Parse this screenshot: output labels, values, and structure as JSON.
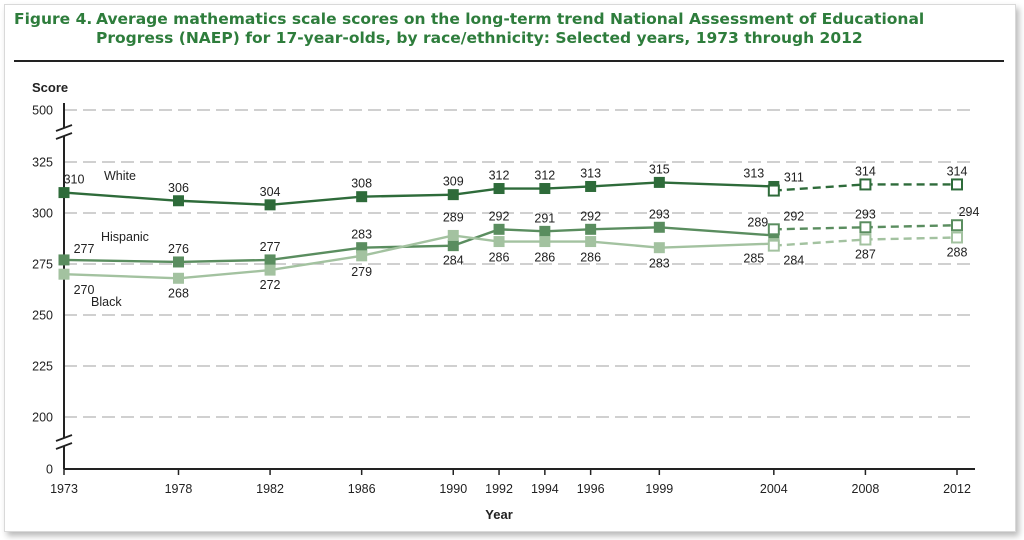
{
  "figure": {
    "number": "Figure 4.",
    "title": "Average mathematics scale scores on the long-term trend National Assessment of Educational Progress (NAEP) for 17-year-olds, by race/ethnicity: Selected years, 1973 through 2012"
  },
  "chart_data": {
    "type": "line",
    "xlabel": "Year",
    "ylabel": "Score",
    "x": [
      1973,
      1978,
      1982,
      1986,
      1990,
      1992,
      1994,
      1996,
      1999,
      2004,
      2008,
      2012
    ],
    "y_ticks": [
      "0",
      "200",
      "225",
      "250",
      "275",
      "300",
      "325",
      "500"
    ],
    "y_tick_values": [
      0,
      200,
      225,
      250,
      275,
      300,
      325,
      500
    ],
    "axis_breaks": [
      [
        0,
        200
      ],
      [
        325,
        500
      ]
    ],
    "assessment_change_after": 2004,
    "colors": {
      "White": "#2e6b3a",
      "Hispanic": "#5a8d5f",
      "Black": "#a3c2a0"
    },
    "series": [
      {
        "name": "White",
        "values_original": [
          310,
          306,
          304,
          308,
          309,
          312,
          312,
          313,
          315,
          313
        ],
        "x_original": [
          1973,
          1978,
          1982,
          1986,
          1990,
          1992,
          1994,
          1996,
          1999,
          2004
        ],
        "values_revised": [
          311,
          314,
          314
        ],
        "x_revised": [
          2004,
          2008,
          2012
        ],
        "labels_original": [
          "310",
          "306",
          "304",
          "308",
          "309",
          "312",
          "312",
          "313",
          "315",
          "313"
        ],
        "labels_revised": [
          "311",
          "314",
          "314"
        ]
      },
      {
        "name": "Hispanic",
        "values_original": [
          277,
          276,
          277,
          283,
          284,
          292,
          291,
          292,
          293,
          289
        ],
        "x_original": [
          1973,
          1978,
          1982,
          1986,
          1990,
          1992,
          1994,
          1996,
          1999,
          2004
        ],
        "values_revised": [
          292,
          293,
          294
        ],
        "x_revised": [
          2004,
          2008,
          2012
        ],
        "labels_original": [
          "277",
          "276",
          "277",
          "283",
          "284",
          "292",
          "291",
          "292",
          "293",
          "289"
        ],
        "labels_revised": [
          "292",
          "293",
          "294"
        ]
      },
      {
        "name": "Black",
        "values_original": [
          270,
          268,
          272,
          279,
          289,
          286,
          286,
          286,
          283,
          285
        ],
        "x_original": [
          1973,
          1978,
          1982,
          1986,
          1990,
          1992,
          1994,
          1996,
          1999,
          2004
        ],
        "values_revised": [
          284,
          287,
          288
        ],
        "x_revised": [
          2004,
          2008,
          2012
        ],
        "labels_original": [
          "270",
          "268",
          "272",
          "279",
          "289",
          "286",
          "286",
          "286",
          "283",
          "285"
        ],
        "labels_revised": [
          "284",
          "287",
          "288"
        ]
      }
    ]
  }
}
